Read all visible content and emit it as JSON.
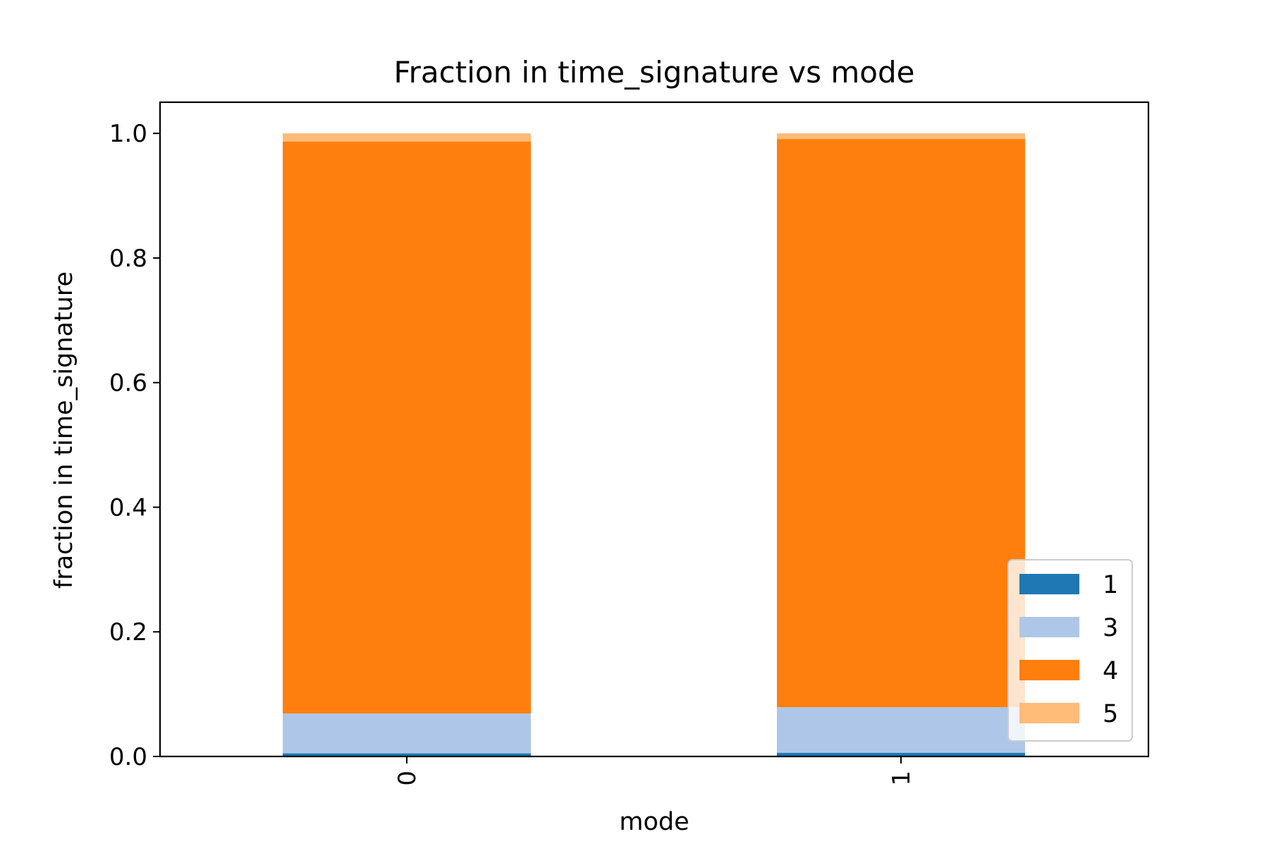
{
  "chart_data": {
    "type": "bar",
    "stacked": true,
    "title": "Fraction in time_signature vs mode",
    "xlabel": "mode",
    "ylabel": "fraction in time_signature",
    "categories": [
      "0",
      "1"
    ],
    "ylim": [
      0,
      1.05
    ],
    "yticks": [
      "0.0",
      "0.2",
      "0.4",
      "0.6",
      "0.8",
      "1.0"
    ],
    "legend_position": "lower-right",
    "grid": false,
    "series": [
      {
        "name": "1",
        "color": "#1f77b4",
        "values": [
          0.005,
          0.006
        ]
      },
      {
        "name": "3",
        "color": "#aec7e8",
        "values": [
          0.064,
          0.073
        ]
      },
      {
        "name": "4",
        "color": "#ff7f0e",
        "values": [
          0.918,
          0.912
        ]
      },
      {
        "name": "5",
        "color": "#ffbb78",
        "values": [
          0.013,
          0.009
        ]
      }
    ]
  }
}
